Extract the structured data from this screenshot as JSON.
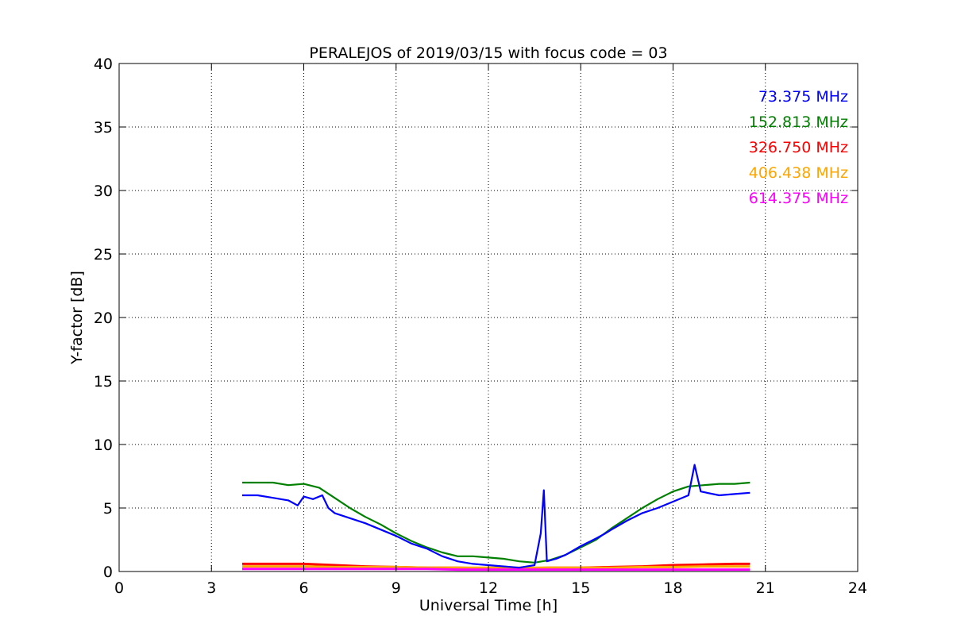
{
  "chart_data": {
    "type": "line",
    "title": "PERALEJOS of 2019/03/15 with focus code = 03",
    "xlabel": "Universal Time [h]",
    "ylabel": "Y-factor [dB]",
    "xlim": [
      0,
      24
    ],
    "ylim": [
      0,
      40
    ],
    "xticks": [
      "0",
      "3",
      "6",
      "9",
      "12",
      "15",
      "18",
      "21",
      "24"
    ],
    "yticks": [
      "0",
      "5",
      "10",
      "15",
      "20",
      "25",
      "30",
      "35",
      "40"
    ],
    "grid": true,
    "legend_position": "top-right",
    "series": [
      {
        "name": "73.375 MHz",
        "color": "#0000ff",
        "x": [
          4.0,
          4.5,
          5.0,
          5.5,
          5.8,
          6.0,
          6.3,
          6.6,
          6.8,
          7.0,
          7.5,
          8.0,
          8.5,
          9.0,
          9.5,
          10.0,
          10.5,
          11.0,
          11.5,
          12.0,
          12.5,
          13.0,
          13.5,
          13.7,
          13.8,
          13.9,
          14.2,
          14.5,
          15.0,
          15.5,
          15.8,
          16.0,
          16.5,
          17.0,
          17.5,
          18.0,
          18.5,
          18.7,
          18.9,
          19.5,
          20.0,
          20.5
        ],
        "y": [
          6.0,
          6.0,
          5.8,
          5.6,
          5.2,
          5.9,
          5.7,
          6.0,
          5.0,
          4.6,
          4.2,
          3.8,
          3.3,
          2.8,
          2.2,
          1.8,
          1.2,
          0.8,
          0.6,
          0.5,
          0.4,
          0.3,
          0.5,
          3.0,
          6.4,
          0.8,
          1.0,
          1.3,
          2.0,
          2.6,
          3.0,
          3.3,
          4.0,
          4.6,
          5.0,
          5.5,
          6.0,
          8.4,
          6.3,
          6.0,
          6.1,
          6.2
        ]
      },
      {
        "name": "152.813 MHz",
        "color": "#008000",
        "x": [
          4.0,
          4.5,
          5.0,
          5.5,
          6.0,
          6.5,
          7.0,
          7.5,
          8.0,
          8.5,
          9.0,
          9.5,
          10.0,
          10.5,
          11.0,
          11.5,
          12.0,
          12.5,
          13.0,
          13.5,
          14.0,
          14.5,
          15.0,
          15.5,
          16.0,
          16.5,
          17.0,
          17.5,
          18.0,
          18.5,
          19.0,
          19.5,
          20.0,
          20.5
        ],
        "y": [
          7.0,
          7.0,
          7.0,
          6.8,
          6.9,
          6.6,
          5.8,
          5.0,
          4.3,
          3.7,
          3.0,
          2.4,
          1.9,
          1.5,
          1.2,
          1.2,
          1.1,
          1.0,
          0.8,
          0.7,
          0.9,
          1.3,
          1.9,
          2.5,
          3.4,
          4.2,
          5.0,
          5.7,
          6.3,
          6.7,
          6.8,
          6.9,
          6.9,
          7.0
        ]
      },
      {
        "name": "326.750 MHz",
        "color": "#ff0000",
        "x": [
          4.0,
          5.0,
          6.0,
          7.0,
          8.0,
          9.0,
          10.0,
          11.0,
          12.0,
          13.0,
          14.0,
          15.0,
          16.0,
          17.0,
          18.0,
          19.0,
          20.0,
          20.5
        ],
        "y": [
          0.6,
          0.6,
          0.6,
          0.5,
          0.4,
          0.35,
          0.3,
          0.3,
          0.25,
          0.25,
          0.3,
          0.3,
          0.35,
          0.4,
          0.5,
          0.55,
          0.6,
          0.6
        ]
      },
      {
        "name": "406.438 MHz",
        "color": "#ffa500",
        "x": [
          4.0,
          5.0,
          6.0,
          7.0,
          8.0,
          9.0,
          10.0,
          11.0,
          12.0,
          13.0,
          14.0,
          15.0,
          16.0,
          17.0,
          18.0,
          19.0,
          20.0,
          20.5
        ],
        "y": [
          0.4,
          0.4,
          0.4,
          0.35,
          0.35,
          0.35,
          0.3,
          0.3,
          0.3,
          0.3,
          0.3,
          0.3,
          0.3,
          0.35,
          0.35,
          0.4,
          0.4,
          0.4
        ]
      },
      {
        "name": "614.375 MHz",
        "color": "#ff00ff",
        "x": [
          4.0,
          5.0,
          6.0,
          7.0,
          8.0,
          9.0,
          10.0,
          11.0,
          12.0,
          13.0,
          14.0,
          15.0,
          16.0,
          17.0,
          18.0,
          19.0,
          20.0,
          20.5
        ],
        "y": [
          0.2,
          0.2,
          0.2,
          0.2,
          0.2,
          0.2,
          0.2,
          0.15,
          0.15,
          0.15,
          0.15,
          0.15,
          0.15,
          0.15,
          0.15,
          0.15,
          0.15,
          0.15
        ]
      }
    ]
  }
}
